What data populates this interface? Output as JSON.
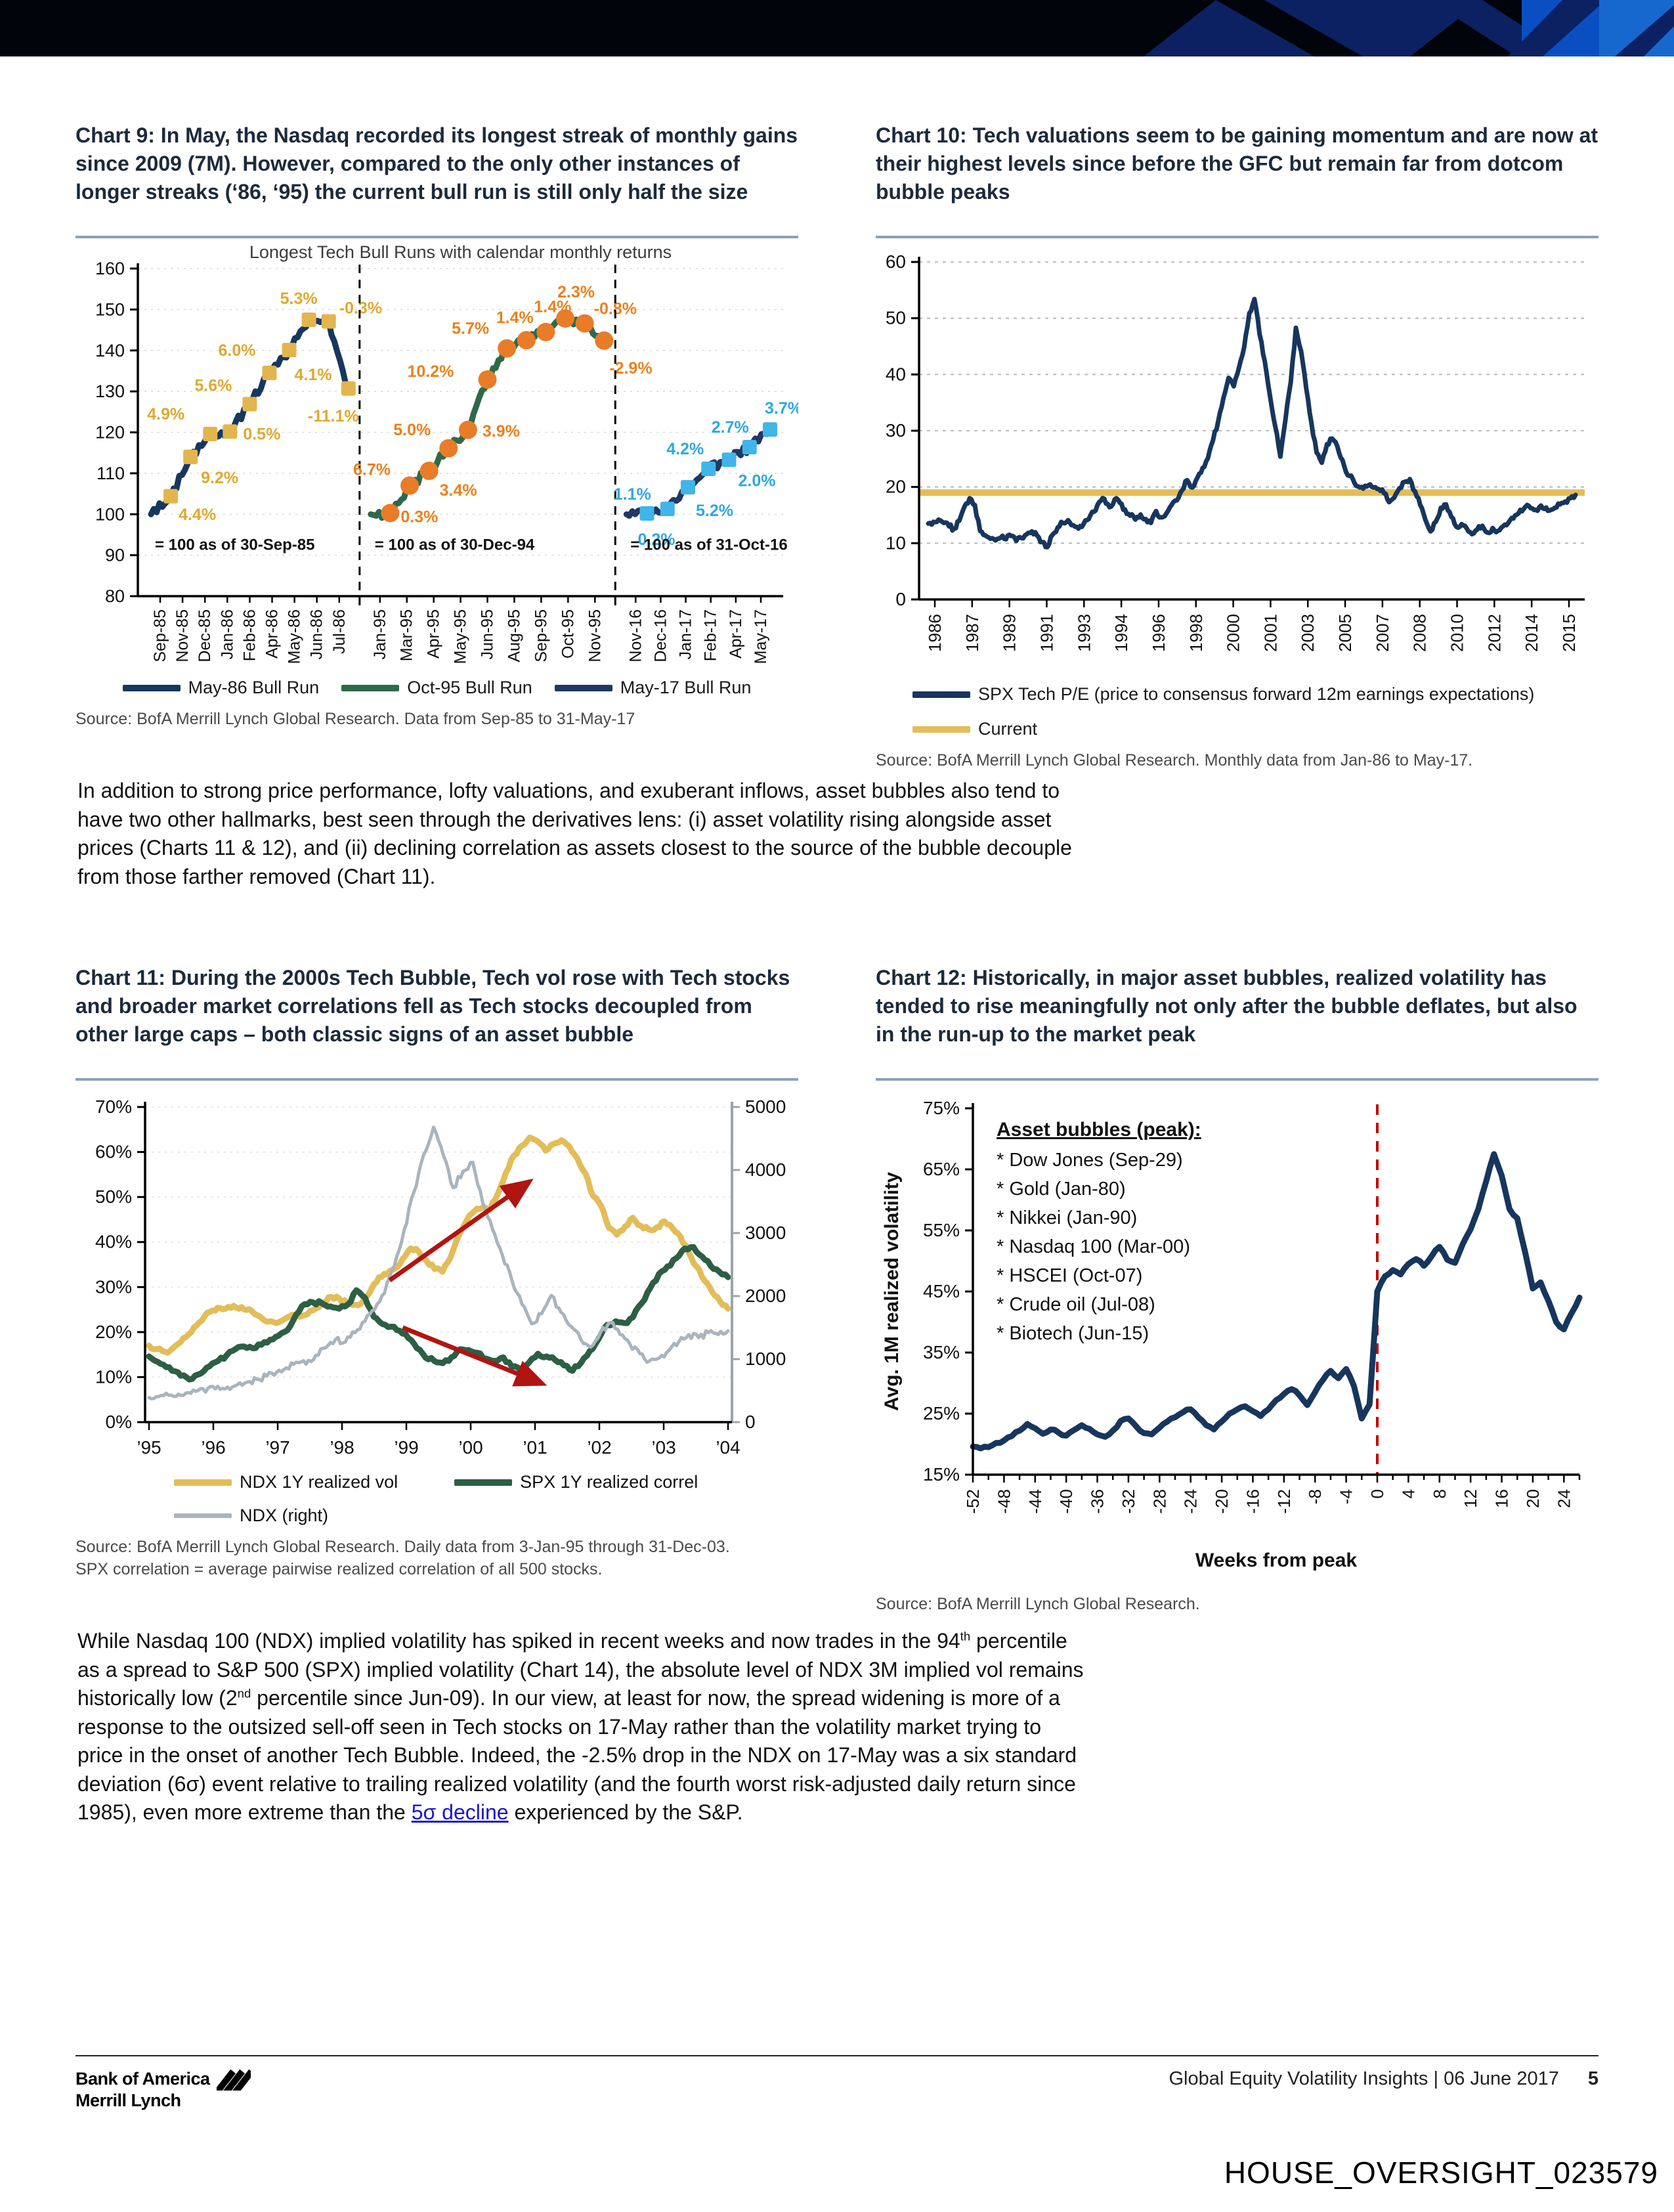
{
  "theme": {
    "banner_black": "#02040c",
    "banner_navy": "#0c2162",
    "banner_blue": "#0a4fc2",
    "banner_lightblue": "#1668cf",
    "title_color": "#1c2a3c",
    "grid_color": "#cfcfcf",
    "arrow_red": "#b01512"
  },
  "charts": {
    "chart9": {
      "title": "Chart 9: In May, the Nasdaq recorded its longest streak of monthly gains since 2009 (7M).  However, compared to the only other instances of longer streaks (‘86, ‘95) the current bull run is still only half the size",
      "inner_title": "Longest Tech Bull Runs with calendar monthly returns",
      "type": "line",
      "ylim": [
        80,
        160
      ],
      "y_ticks": [
        80,
        90,
        100,
        110,
        120,
        130,
        140,
        150,
        160
      ],
      "panels": [
        {
          "name": "May-86 Bull Run",
          "line_color": "#17375e",
          "marker": "square",
          "marker_color": "#e3b54e",
          "label_color": "#dfa930",
          "note": "= 100 as of 30-Sep-85",
          "x_labels": [
            "Sep-85",
            "Nov-85",
            "Dec-85",
            "Jan-86",
            "Feb-86",
            "Apr-86",
            "May-86",
            "Jun-86",
            "Jul-86"
          ],
          "index_levels": [
            100,
            104.4,
            114.0,
            119.6,
            120.2,
            126.9,
            134.5,
            140.1,
            147.5,
            147.1,
            130.7
          ],
          "monthly_returns": [
            "4.4%",
            "9.2%",
            "4.9%",
            "0.5%",
            "5.6%",
            "6.0%",
            "4.1%",
            "5.3%",
            "-0.3%",
            "-11.1%"
          ]
        },
        {
          "name": "Oct-95 Bull Run",
          "line_color": "#2d6a4a",
          "marker": "circle",
          "marker_color": "#e87c28",
          "label_color": "#e8821d",
          "note": "= 100 as of 30-Dec-94",
          "x_labels": [
            "Jan-95",
            "Mar-95",
            "Apr-95",
            "May-95",
            "Jun-95",
            "Aug-95",
            "Sep-95",
            "Oct-95",
            "Nov-95"
          ],
          "index_levels": [
            100,
            100.3,
            107.0,
            110.6,
            116.1,
            120.6,
            132.9,
            140.5,
            142.5,
            144.5,
            147.8,
            146.6,
            142.4
          ],
          "monthly_returns": [
            "0.3%",
            "6.7%",
            "3.4%",
            "5.0%",
            "3.9%",
            "10.2%",
            "5.7%",
            "1.4%",
            "1.4%",
            "2.3%",
            "-0.8%",
            "-2.9%"
          ]
        },
        {
          "name": "May-17 Bull Run",
          "line_color": "#1f3864",
          "marker": "square",
          "marker_color": "#41b4e9",
          "label_color": "#2fa8dd",
          "note": "= 100 as of 31-Oct-16",
          "x_labels": [
            "Nov-16",
            "Dec-16",
            "Jan-17",
            "Feb-17",
            "Apr-17",
            "May-17"
          ],
          "index_levels": [
            100,
            100.2,
            101.3,
            106.6,
            111.1,
            113.3,
            116.4,
            120.7
          ],
          "monthly_returns": [
            "0.2%",
            "1.1%",
            "5.2%",
            "4.2%",
            "2.0%",
            "2.7%",
            "3.7%"
          ]
        }
      ],
      "legend": [
        {
          "label": "May-86 Bull Run",
          "color": "#17375e"
        },
        {
          "label": "Oct-95 Bull Run",
          "color": "#2d6a4a"
        },
        {
          "label": "May-17 Bull Run",
          "color": "#1f3864"
        }
      ],
      "source": "Source: BofA Merrill Lynch Global Research. Data from Sep-85 to 31-May-17"
    },
    "chart10": {
      "title": "Chart 10: Tech valuations seem to be gaining momentum and are now at their highest levels since before the GFC but remain far from dotcom bubble peaks",
      "type": "line",
      "ylim": [
        0,
        60
      ],
      "y_ticks": [
        0,
        10,
        20,
        30,
        40,
        50,
        60
      ],
      "x_labels": [
        "1986",
        "1987",
        "1989",
        "1991",
        "1993",
        "1994",
        "1996",
        "1998",
        "2000",
        "2001",
        "2003",
        "2005",
        "2007",
        "2008",
        "2010",
        "2012",
        "2014",
        "2015"
      ],
      "series": {
        "name": "SPX Tech P/E",
        "color": "#17365d",
        "values": [
          13.5,
          13.8,
          14.2,
          13.6,
          13.0,
          12.6,
          14.0,
          16.5,
          18.0,
          16.8,
          12.2,
          11.4,
          10.8,
          10.5,
          11.0,
          10.7,
          11.3,
          10.4,
          10.9,
          11.6,
          12.1,
          11.4,
          10.2,
          9.3,
          11.5,
          12.8,
          13.6,
          14.1,
          13.2,
          12.6,
          13.4,
          14.3,
          15.6,
          17.3,
          17.9,
          16.4,
          17.8,
          17.2,
          16.0,
          14.9,
          14.2,
          15.1,
          14.3,
          13.6,
          15.7,
          14.6,
          15.3,
          16.8,
          17.6,
          19.4,
          21.2,
          19.9,
          21.7,
          23.4,
          25.1,
          28.3,
          31.7,
          35.8,
          39.4,
          37.9,
          41.2,
          44.8,
          50.9,
          53.4,
          47.1,
          42.3,
          36.2,
          30.8,
          25.4,
          32.1,
          38.6,
          48.3,
          44.2,
          37.5,
          31.4,
          26.1,
          24.3,
          27.6,
          28.6,
          27.2,
          24.8,
          22.1,
          21.4,
          20.1,
          19.7,
          20.3,
          19.9,
          19.6,
          18.9,
          17.3,
          18.1,
          19.8,
          20.9,
          21.4,
          19.2,
          16.8,
          14.2,
          12.1,
          13.8,
          16.3,
          16.9,
          14.7,
          12.9,
          13.4,
          12.6,
          11.6,
          12.4,
          13.1,
          11.9,
          12.7,
          12.2,
          13.0,
          13.6,
          14.4,
          15.3,
          16.1,
          16.6,
          15.9,
          16.4,
          16.1,
          15.8,
          16.3,
          16.9,
          17.4,
          18.0,
          18.6
        ]
      },
      "current_line": {
        "label": "Current",
        "color": "#e2bd59",
        "value": 19
      },
      "legend": [
        {
          "label": "SPX Tech P/E (price to consensus forward 12m earnings expectations)",
          "color": "#17365d"
        },
        {
          "label": "Current",
          "color": "#e2bd59"
        }
      ],
      "source": "Source: BofA Merrill Lynch Global Research. Monthly data from Jan-86 to May-17."
    },
    "chart11": {
      "title": "Chart 11: During the 2000s Tech Bubble, Tech vol rose with Tech stocks and broader market correlations fell as Tech stocks decoupled from other large caps – both classic signs of an asset bubble",
      "type": "line",
      "left_ylim": [
        0,
        70
      ],
      "left_ticks": [
        "0%",
        "10%",
        "20%",
        "30%",
        "40%",
        "50%",
        "60%",
        "70%"
      ],
      "right_ylim": [
        0,
        5000
      ],
      "right_ticks": [
        "0",
        "1000",
        "2000",
        "3000",
        "4000",
        "5000"
      ],
      "x_labels": [
        "’95",
        "’96",
        "’97",
        "’98",
        "’99",
        "’00",
        "’01",
        "’02",
        "’03",
        "’04"
      ],
      "series": [
        {
          "name": "NDX 1Y realized vol",
          "color": "#e2bd59",
          "axis": "left",
          "values": [
            17.0,
            16.2,
            15.6,
            16.4,
            17.8,
            19.5,
            21.5,
            23.5,
            24.8,
            25.3,
            25.6,
            25.4,
            25.0,
            24.6,
            23.4,
            22.3,
            22.0,
            22.8,
            23.8,
            23.4,
            24.0,
            25.2,
            26.6,
            27.8,
            27.4,
            26.5,
            26.1,
            26.9,
            29.4,
            32.2,
            32.8,
            34.1,
            36.3,
            38.6,
            37.9,
            35.8,
            34.0,
            33.4,
            36.5,
            41.2,
            44.6,
            46.8,
            47.6,
            47.2,
            50.8,
            55.4,
            59.2,
            61.4,
            63.2,
            62.4,
            60.3,
            61.8,
            62.6,
            61.2,
            58.6,
            55.3,
            50.2,
            48.0,
            43.1,
            41.6,
            43.4,
            45.4,
            43.6,
            42.8,
            43.3,
            44.6,
            43.1,
            41.2,
            37.8,
            34.6,
            31.5,
            28.9,
            26.8,
            25.2
          ]
        },
        {
          "name": "SPX 1Y realized correl",
          "color": "#2d5f45",
          "axis": "left",
          "values": [
            14.6,
            13.4,
            12.2,
            11.3,
            10.4,
            9.6,
            10.8,
            12.4,
            13.6,
            14.9,
            16.2,
            16.8,
            16.4,
            17.2,
            18.3,
            19.2,
            20.4,
            23.8,
            26.2,
            26.6,
            26.4,
            25.7,
            25.2,
            26.1,
            29.3,
            27.6,
            23.4,
            21.8,
            21.2,
            20.3,
            18.7,
            16.4,
            14.3,
            13.6,
            13.1,
            14.4,
            16.2,
            16.0,
            15.4,
            14.1,
            13.6,
            14.4,
            12.3,
            11.6,
            13.3,
            15.2,
            14.6,
            13.8,
            12.6,
            11.4,
            13.2,
            15.8,
            18.4,
            21.6,
            22.4,
            22.0,
            23.3,
            26.4,
            29.8,
            32.9,
            34.6,
            36.4,
            38.6,
            38.9,
            36.8,
            34.7,
            33.4,
            32.2
          ]
        },
        {
          "name": "NDX (right)",
          "color": "#aab4bd",
          "axis": "right",
          "values": [
            390,
            405,
            425,
            445,
            470,
            500,
            535,
            570,
            555,
            595,
            635,
            680,
            730,
            790,
            860,
            950,
            920,
            1060,
            1180,
            1310,
            1270,
            1420,
            1600,
            1790,
            2050,
            2480,
            3050,
            3650,
            4250,
            4680,
            4230,
            3720,
            3980,
            4120,
            3480,
            3060,
            2650,
            2240,
            1870,
            1560,
            1720,
            2010,
            1740,
            1520,
            1310,
            1190,
            1420,
            1580,
            1390,
            1240,
            1090,
            970,
            1020,
            1140,
            1280,
            1390,
            1340,
            1420,
            1390,
            1450
          ]
        }
      ],
      "source_line1": "Source: BofA Merrill Lynch Global Research.  Daily data from 3-Jan-95 through 31-Dec-03.",
      "source_line2": "SPX correlation = average pairwise realized correlation of all 500 stocks."
    },
    "chart12": {
      "title": "Chart 12: Historically, in major asset bubbles, realized volatility has tended to rise meaningfully not only after the bubble deflates, but also in the run-up to the market peak",
      "type": "line",
      "ylabel": "Avg. 1M realized volatility",
      "xlabel": "Weeks from peak",
      "ylim": [
        15,
        75
      ],
      "y_ticks": [
        "15%",
        "25%",
        "35%",
        "45%",
        "55%",
        "65%",
        "75%"
      ],
      "x_ticks": [
        -52,
        -48,
        -44,
        -40,
        -36,
        -32,
        -28,
        -24,
        -20,
        -16,
        -12,
        -8,
        -4,
        0,
        4,
        8,
        12,
        16,
        20,
        24
      ],
      "xlim": [
        -52,
        26
      ],
      "annotation": {
        "title": "Asset bubbles (peak):",
        "items": [
          "* Dow Jones (Sep-29)",
          "* Gold (Jan-80)",
          "* Nikkei (Jan-90)",
          "* Nasdaq 100 (Mar-00)",
          "* HSCEI (Oct-07)",
          "* Crude oil (Jul-08)",
          "* Biotech (Jun-15)"
        ]
      },
      "peak_line_color": "#c00000",
      "series": {
        "name": "Avg. 1M realized volatility around bubble peaks",
        "color": "#17365d",
        "x_start": -52,
        "x_end": 26,
        "values": [
          19.6,
          19.3,
          19.5,
          20.2,
          20.6,
          21.3,
          22.2,
          23.3,
          22.6,
          21.7,
          22.4,
          21.9,
          21.4,
          22.3,
          23.1,
          22.5,
          21.6,
          21.2,
          22.2,
          23.8,
          24.2,
          22.9,
          21.8,
          21.6,
          22.7,
          23.7,
          24.4,
          25.2,
          25.7,
          24.4,
          23.1,
          22.4,
          23.7,
          25.0,
          25.7,
          26.2,
          25.4,
          24.6,
          25.7,
          27.2,
          28.2,
          29.0,
          28.0,
          26.4,
          28.5,
          30.5,
          32.0,
          30.8,
          32.3,
          29.5,
          24.2,
          26.5,
          45.0,
          47.5,
          48.5,
          47.8,
          49.5,
          50.3,
          49.2,
          50.8,
          52.3,
          50.2,
          49.7,
          52.8,
          55.2,
          58.5,
          63.0,
          67.5,
          64.0,
          58.5,
          57.0,
          51.5,
          45.5,
          46.5,
          43.5,
          40.0,
          38.8,
          41.5,
          44.0
        ]
      },
      "source": "Source: BofA Merrill Lynch Global Research."
    }
  },
  "paragraph1": "In addition to strong price performance, lofty valuations, and exuberant inflows, asset bubbles also tend to have two other hallmarks, best seen through the derivatives lens: (i) asset volatility rising alongside asset prices (Charts 11 & 12), and (ii) declining correlation as assets closest to the source of the bubble decouple from those farther removed (Chart 11).",
  "paragraph2": {
    "t1": "While Nasdaq 100 (NDX) implied volatility has spiked in recent weeks and now trades in the 94",
    "sup1": "th",
    "t2": " percentile as a spread to S&P 500 (SPX) implied volatility (Chart 14), the absolute level of NDX 3M implied vol remains historically low (2",
    "sup2": "nd",
    "t3": " percentile since Jun-09).  In our view, at least for now, the spread widening is more of a response to the outsized sell-off seen in Tech stocks on 17-May rather than the volatility market trying to price in the onset of another Tech Bubble.  Indeed, the -2.5% drop in the NDX on 17-May was a six standard deviation (6σ) event relative to trailing realized volatility (and the fourth worst risk-adjusted daily return since 1985), even more extreme than the ",
    "link": "5σ decline",
    "t4": " experienced by the S&P."
  },
  "footer": {
    "brand_line1": "Bank of America",
    "brand_line2": "Merrill Lynch",
    "right_title": "Global Equity Volatility Insights | 06 June 2017",
    "page_number": "5"
  },
  "watermark": "HOUSE_OVERSIGHT_023579"
}
